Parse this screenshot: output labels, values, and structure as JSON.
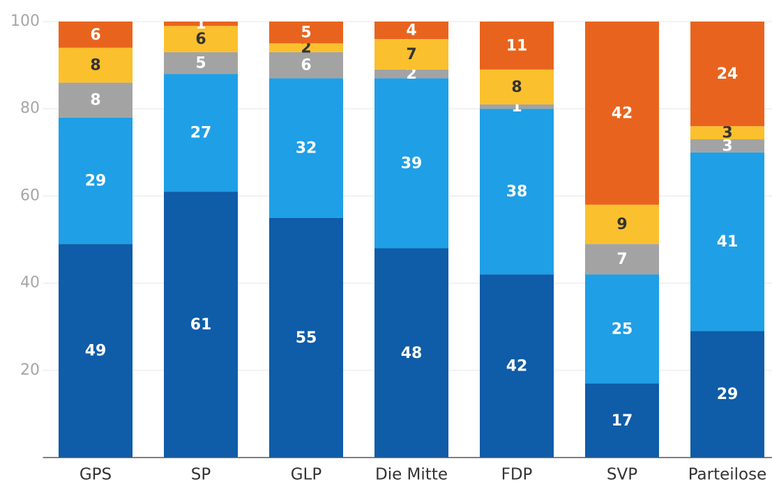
{
  "chart_data": {
    "type": "stacked_bar",
    "categories": [
      "GPS",
      "SP",
      "GLP",
      "Die Mitte",
      "FDP",
      "SVP",
      "Parteilose"
    ],
    "series": [
      {
        "color": "#0f5ca8",
        "label_color": "#ffffff",
        "values": [
          49,
          61,
          55,
          48,
          42,
          17,
          29
        ]
      },
      {
        "color": "#1f9fe6",
        "label_color": "#ffffff",
        "values": [
          29,
          27,
          32,
          39,
          38,
          25,
          41
        ]
      },
      {
        "color": "#a3a3a3",
        "label_color": "#ffffff",
        "values": [
          8,
          5,
          6,
          2,
          1,
          7,
          3
        ]
      },
      {
        "color": "#fbc02d",
        "label_color": "#333333",
        "values": [
          8,
          6,
          2,
          7,
          8,
          9,
          3
        ]
      },
      {
        "color": "#e8641e",
        "label_color": "#ffffff",
        "values": [
          6,
          1,
          5,
          4,
          11,
          42,
          24
        ]
      }
    ],
    "ylim": [
      0,
      100
    ],
    "yticks": [
      20,
      40,
      60,
      80,
      100
    ],
    "grid": true
  }
}
